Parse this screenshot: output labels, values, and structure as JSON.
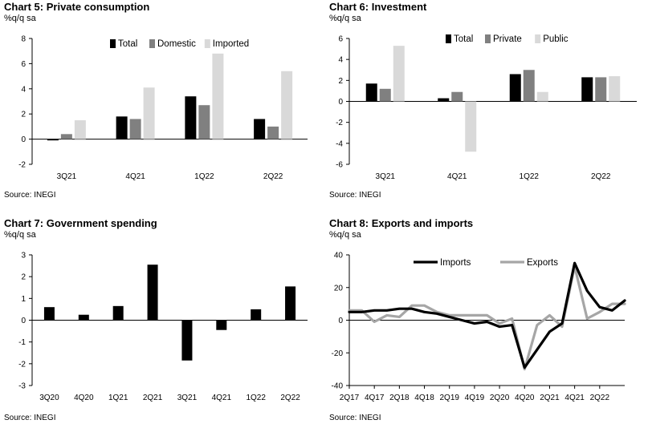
{
  "chart_data": [
    {
      "id": "c5",
      "type": "bar",
      "title": "Chart 5: Private consumption",
      "unit": "%q/q sa",
      "source": "Source: INEGI",
      "categories": [
        "3Q21",
        "4Q21",
        "1Q22",
        "2Q22"
      ],
      "series": [
        {
          "name": "Total",
          "color": "#000000",
          "values": [
            -0.1,
            1.8,
            3.4,
            1.6
          ]
        },
        {
          "name": "Domestic",
          "color": "#808080",
          "values": [
            0.4,
            1.6,
            2.7,
            1.0
          ]
        },
        {
          "name": "Imported",
          "color": "#d9d9d9",
          "values": [
            1.5,
            4.1,
            6.8,
            5.4
          ]
        }
      ],
      "ylim": [
        -2,
        8
      ],
      "yticks": [
        -2,
        0,
        2,
        4,
        6,
        8
      ],
      "grid": false,
      "legend_position": "top"
    },
    {
      "id": "c6",
      "type": "bar",
      "title": "Chart 6: Investment",
      "unit": "%q/q sa",
      "source": "Source: INEGI",
      "categories": [
        "3Q21",
        "4Q21",
        "1Q22",
        "2Q22"
      ],
      "series": [
        {
          "name": "Total",
          "color": "#000000",
          "values": [
            1.7,
            0.3,
            2.6,
            2.3
          ]
        },
        {
          "name": "Private",
          "color": "#808080",
          "values": [
            1.2,
            0.9,
            3.0,
            2.3
          ]
        },
        {
          "name": "Public",
          "color": "#d9d9d9",
          "values": [
            5.3,
            -4.8,
            0.9,
            2.4
          ]
        }
      ],
      "ylim": [
        -6,
        6
      ],
      "yticks": [
        -6,
        -4,
        -2,
        0,
        2,
        4,
        6
      ],
      "grid": false,
      "legend_position": "top"
    },
    {
      "id": "c7",
      "type": "bar",
      "title": "Chart 7: Government spending",
      "unit": "%q/q sa",
      "source": "Source: INEGI",
      "categories": [
        "3Q20",
        "4Q20",
        "1Q21",
        "2Q21",
        "3Q21",
        "4Q21",
        "1Q22",
        "2Q22"
      ],
      "series": [
        {
          "name": "",
          "color": "#000000",
          "values": [
            0.6,
            0.25,
            0.65,
            2.55,
            -1.85,
            -0.45,
            0.5,
            1.55
          ]
        }
      ],
      "ylim": [
        -3,
        3
      ],
      "yticks": [
        -3,
        -2,
        -1,
        0,
        1,
        2,
        3
      ],
      "grid": false
    },
    {
      "id": "c8",
      "type": "line",
      "title": "Chart 8: Exports and imports",
      "unit": "%q/q sa",
      "source": "Source: INEGI",
      "x_labels": [
        "2Q17",
        "4Q17",
        "2Q18",
        "4Q18",
        "2Q19",
        "4Q19",
        "2Q20",
        "4Q20",
        "2Q21",
        "4Q21",
        "2Q22"
      ],
      "series": [
        {
          "name": "Imports",
          "color": "#000000",
          "values": [
            5,
            5,
            6,
            6,
            7,
            7,
            5,
            4,
            2,
            0,
            -2,
            -1,
            -4,
            -3,
            -29,
            -18,
            -7,
            -2,
            35,
            18,
            8,
            6,
            12
          ]
        },
        {
          "name": "Exports",
          "color": "#a6a6a6",
          "values": [
            6,
            6,
            -1,
            3,
            2,
            9,
            9,
            5,
            3,
            3,
            3,
            3,
            -2,
            1,
            -30,
            -3,
            3,
            -4,
            33,
            1,
            5,
            10,
            10
          ]
        }
      ],
      "ylim": [
        -40,
        40
      ],
      "yticks": [
        -40,
        -20,
        0,
        20,
        40
      ],
      "grid": false,
      "legend_position": "top"
    }
  ]
}
